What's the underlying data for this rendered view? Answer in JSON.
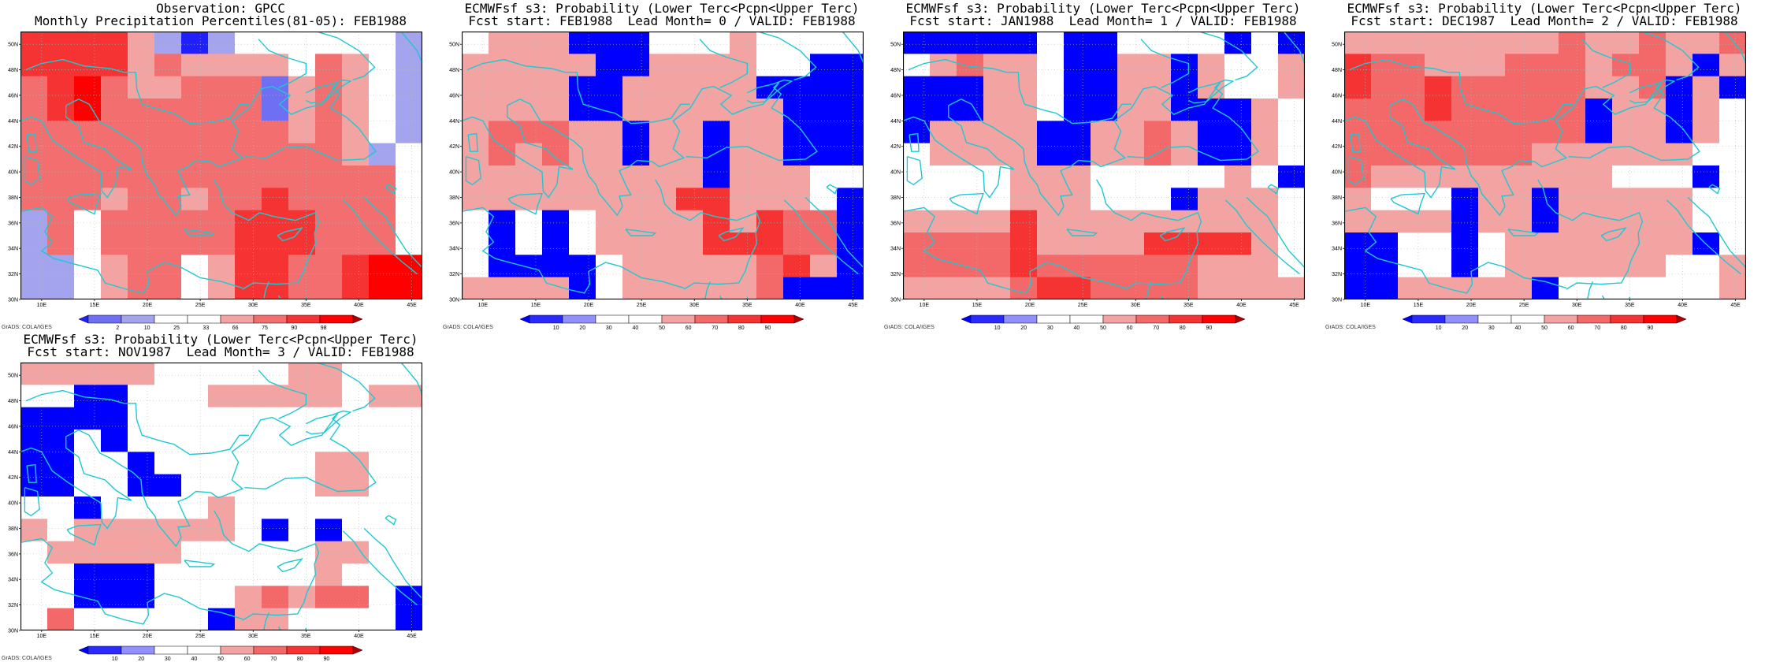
{
  "credit": "GrADS: COLA/IGES",
  "colors": {
    "coast": "#1ec8d2",
    "obs_levels": [
      "#2020ff",
      "#6f6ff4",
      "#a3a3ee",
      "#ffffff",
      "#ffffff",
      "#f4a3a3",
      "#f36f6f",
      "#f63333",
      "#ff0000",
      "#b30000"
    ],
    "prob_levels": [
      "#0000ff",
      "#2a2aff",
      "#9090ff",
      "#ffffff",
      "#ffffff",
      "#f4a3a3",
      "#f36868",
      "#f63333",
      "#ff0000",
      "#b30000"
    ]
  },
  "panels": [
    {
      "title_line1": "Observation: GPCC",
      "title_line2": "Monthly Precipitation Percentiles(81-05): FEB1988",
      "colorbar_labels": [
        "2",
        "10",
        "25",
        "33",
        "66",
        "75",
        "90",
        "98"
      ],
      "scale": "obs",
      "grid": [
        [
          7,
          7,
          7,
          7,
          5,
          2,
          0,
          2,
          3,
          3,
          3,
          3,
          3,
          3,
          2
        ],
        [
          7,
          7,
          7,
          7,
          5,
          6,
          5,
          5,
          5,
          5,
          3,
          6,
          5,
          3,
          2
        ],
        [
          6,
          7,
          8,
          6,
          5,
          5,
          6,
          6,
          6,
          1,
          5,
          6,
          5,
          3,
          2
        ],
        [
          6,
          7,
          8,
          6,
          6,
          6,
          6,
          6,
          6,
          1,
          5,
          6,
          5,
          3,
          2
        ],
        [
          6,
          6,
          6,
          6,
          6,
          6,
          6,
          6,
          6,
          6,
          5,
          6,
          5,
          3,
          2
        ],
        [
          6,
          6,
          6,
          6,
          6,
          6,
          6,
          6,
          6,
          6,
          6,
          6,
          5,
          2,
          3
        ],
        [
          6,
          6,
          6,
          6,
          6,
          6,
          6,
          6,
          6,
          6,
          6,
          6,
          6,
          6,
          3
        ],
        [
          6,
          6,
          6,
          5,
          6,
          6,
          5,
          6,
          6,
          7,
          6,
          6,
          6,
          6,
          3
        ],
        [
          2,
          6,
          3,
          6,
          6,
          6,
          6,
          6,
          7,
          7,
          7,
          6,
          6,
          6,
          3
        ],
        [
          2,
          6,
          3,
          6,
          6,
          6,
          6,
          6,
          7,
          7,
          7,
          6,
          6,
          6,
          3
        ],
        [
          2,
          2,
          3,
          5,
          6,
          6,
          3,
          5,
          7,
          7,
          6,
          6,
          7,
          8,
          8
        ],
        [
          2,
          2,
          3,
          5,
          6,
          6,
          3,
          5,
          7,
          7,
          6,
          6,
          7,
          8,
          8
        ]
      ]
    },
    {
      "title_line1": "ECMWFsf s3: Probability (Lower Terc<Pcpn<Upper Terc)",
      "title_line2": "Fcst start: FEB1988  Lead Month= 0 / VALID: FEB1988",
      "colorbar_labels": [
        "10",
        "20",
        "30",
        "40",
        "50",
        "60",
        "70",
        "80",
        "90"
      ],
      "scale": "prob",
      "grid": [
        [
          3,
          5,
          5,
          5,
          0,
          0,
          0,
          3,
          3,
          3,
          5,
          3,
          3,
          3,
          3
        ],
        [
          5,
          5,
          5,
          5,
          5,
          0,
          0,
          5,
          5,
          5,
          5,
          3,
          3,
          0,
          0
        ],
        [
          5,
          5,
          5,
          5,
          0,
          0,
          5,
          5,
          5,
          5,
          5,
          0,
          0,
          0,
          0
        ],
        [
          5,
          5,
          5,
          5,
          0,
          0,
          5,
          5,
          5,
          5,
          5,
          5,
          0,
          0,
          0
        ],
        [
          5,
          6,
          6,
          6,
          5,
          5,
          0,
          5,
          5,
          0,
          5,
          5,
          0,
          0,
          0
        ],
        [
          5,
          6,
          5,
          6,
          5,
          5,
          0,
          5,
          5,
          0,
          5,
          5,
          0,
          0,
          0
        ],
        [
          5,
          5,
          5,
          5,
          5,
          5,
          5,
          5,
          5,
          0,
          5,
          5,
          5,
          3,
          3
        ],
        [
          5,
          5,
          5,
          5,
          5,
          5,
          5,
          5,
          7,
          7,
          5,
          5,
          5,
          3,
          0
        ],
        [
          3,
          0,
          3,
          0,
          3,
          5,
          5,
          5,
          5,
          7,
          5,
          7,
          6,
          6,
          0
        ],
        [
          3,
          0,
          3,
          0,
          3,
          5,
          5,
          5,
          5,
          7,
          7,
          7,
          6,
          6,
          0
        ],
        [
          3,
          0,
          0,
          0,
          0,
          3,
          5,
          5,
          5,
          5,
          5,
          6,
          7,
          5,
          0
        ],
        [
          5,
          5,
          5,
          5,
          0,
          3,
          5,
          5,
          5,
          5,
          5,
          6,
          0,
          0,
          0
        ]
      ]
    },
    {
      "title_line1": "ECMWFsf s3: Probability (Lower Terc<Pcpn<Upper Terc)",
      "title_line2": "Fcst start: JAN1988  Lead Month= 1 / VALID: FEB1988",
      "colorbar_labels": [
        "10",
        "20",
        "30",
        "40",
        "50",
        "60",
        "70",
        "80",
        "90"
      ],
      "scale": "prob",
      "grid": [
        [
          0,
          0,
          0,
          0,
          0,
          3,
          0,
          0,
          3,
          3,
          3,
          3,
          0,
          3,
          0
        ],
        [
          3,
          5,
          6,
          5,
          5,
          3,
          0,
          0,
          5,
          5,
          0,
          5,
          3,
          3,
          5
        ],
        [
          0,
          0,
          0,
          5,
          5,
          3,
          0,
          0,
          5,
          5,
          0,
          5,
          3,
          3,
          5
        ],
        [
          0,
          0,
          0,
          5,
          5,
          3,
          0,
          0,
          5,
          5,
          0,
          0,
          0,
          5,
          3
        ],
        [
          0,
          5,
          5,
          5,
          5,
          0,
          0,
          5,
          5,
          6,
          5,
          0,
          0,
          5,
          3
        ],
        [
          3,
          5,
          5,
          5,
          5,
          0,
          0,
          5,
          5,
          6,
          5,
          0,
          0,
          5,
          3
        ],
        [
          3,
          3,
          3,
          3,
          5,
          5,
          5,
          3,
          3,
          3,
          3,
          3,
          5,
          3,
          0
        ],
        [
          3,
          3,
          3,
          3,
          5,
          5,
          5,
          3,
          3,
          3,
          0,
          5,
          5,
          5,
          3
        ],
        [
          5,
          5,
          5,
          5,
          7,
          5,
          5,
          5,
          5,
          5,
          5,
          5,
          5,
          5,
          3
        ],
        [
          6,
          6,
          6,
          6,
          7,
          5,
          5,
          5,
          5,
          7,
          7,
          7,
          7,
          5,
          3
        ],
        [
          6,
          6,
          6,
          6,
          7,
          6,
          6,
          6,
          6,
          6,
          6,
          5,
          5,
          5,
          3
        ],
        [
          5,
          5,
          5,
          5,
          6,
          7,
          7,
          6,
          6,
          6,
          6,
          5,
          5,
          5,
          5
        ]
      ]
    },
    {
      "title_line1": "ECMWFsf s3: Probability (Lower Terc<Pcpn<Upper Terc)",
      "title_line2": "Fcst start: DEC1987  Lead Month= 2 / VALID: FEB1988",
      "colorbar_labels": [
        "10",
        "20",
        "30",
        "40",
        "50",
        "60",
        "70",
        "80",
        "90"
      ],
      "scale": "prob",
      "grid": [
        [
          5,
          5,
          5,
          5,
          5,
          5,
          5,
          5,
          6,
          5,
          5,
          6,
          5,
          5,
          6
        ],
        [
          7,
          6,
          6,
          5,
          5,
          5,
          6,
          6,
          6,
          5,
          6,
          6,
          5,
          0,
          5
        ],
        [
          7,
          6,
          6,
          7,
          6,
          6,
          6,
          6,
          6,
          5,
          5,
          6,
          0,
          5,
          0
        ],
        [
          6,
          6,
          6,
          7,
          6,
          6,
          6,
          6,
          6,
          0,
          5,
          5,
          0,
          5,
          3
        ],
        [
          6,
          6,
          6,
          6,
          6,
          6,
          6,
          6,
          6,
          0,
          5,
          5,
          0,
          5,
          3
        ],
        [
          6,
          6,
          6,
          6,
          6,
          6,
          6,
          5,
          5,
          5,
          5,
          5,
          5,
          3,
          3
        ],
        [
          6,
          5,
          5,
          5,
          5,
          5,
          5,
          5,
          5,
          5,
          3,
          3,
          3,
          0,
          3
        ],
        [
          5,
          3,
          3,
          3,
          0,
          5,
          5,
          0,
          5,
          5,
          5,
          5,
          5,
          3,
          3
        ],
        [
          5,
          5,
          5,
          5,
          0,
          5,
          5,
          0,
          5,
          5,
          5,
          5,
          5,
          3,
          3
        ],
        [
          0,
          0,
          3,
          3,
          0,
          3,
          5,
          5,
          5,
          5,
          5,
          5,
          5,
          0,
          3
        ],
        [
          0,
          0,
          3,
          3,
          0,
          3,
          5,
          5,
          5,
          5,
          5,
          5,
          3,
          3,
          5
        ],
        [
          0,
          0,
          5,
          5,
          5,
          5,
          5,
          0,
          3,
          3,
          3,
          3,
          3,
          3,
          5
        ]
      ]
    },
    {
      "title_line1": "ECMWFsf s3: Probability (Lower Terc<Pcpn<Upper Terc)",
      "title_line2": "Fcst start: NOV1987  Lead Month= 3 / VALID: FEB1988",
      "colorbar_labels": [
        "10",
        "20",
        "30",
        "40",
        "50",
        "60",
        "70",
        "80",
        "90"
      ],
      "scale": "prob",
      "grid": [
        [
          5,
          5,
          5,
          5,
          5,
          3,
          3,
          3,
          3,
          3,
          5,
          5,
          3,
          3,
          3
        ],
        [
          3,
          3,
          0,
          0,
          3,
          3,
          3,
          5,
          5,
          5,
          5,
          5,
          3,
          5,
          5
        ],
        [
          0,
          0,
          0,
          0,
          3,
          3,
          3,
          3,
          3,
          3,
          3,
          3,
          3,
          3,
          3
        ],
        [
          0,
          0,
          3,
          0,
          3,
          3,
          3,
          3,
          3,
          3,
          3,
          3,
          3,
          3,
          3
        ],
        [
          0,
          0,
          3,
          3,
          0,
          3,
          3,
          3,
          3,
          3,
          3,
          5,
          5,
          3,
          3
        ],
        [
          0,
          0,
          3,
          3,
          0,
          0,
          3,
          3,
          3,
          3,
          3,
          5,
          5,
          3,
          3
        ],
        [
          3,
          3,
          0,
          3,
          3,
          3,
          3,
          5,
          3,
          3,
          3,
          3,
          3,
          3,
          3
        ],
        [
          5,
          3,
          5,
          5,
          5,
          5,
          5,
          5,
          3,
          0,
          3,
          0,
          3,
          3,
          3
        ],
        [
          3,
          5,
          5,
          5,
          5,
          5,
          3,
          3,
          3,
          3,
          3,
          5,
          5,
          3,
          3
        ],
        [
          3,
          3,
          0,
          0,
          0,
          3,
          3,
          3,
          3,
          3,
          3,
          5,
          3,
          3,
          3
        ],
        [
          3,
          3,
          0,
          0,
          0,
          3,
          3,
          3,
          5,
          6,
          5,
          6,
          6,
          3,
          0
        ],
        [
          3,
          6,
          3,
          3,
          3,
          3,
          3,
          0,
          5,
          5,
          3,
          3,
          3,
          3,
          0
        ]
      ]
    }
  ],
  "lat_labels": [
    "30N",
    "32N",
    "34N",
    "36N",
    "38N",
    "40N",
    "42N",
    "44N",
    "46N",
    "48N",
    "50N"
  ],
  "lon_labels": [
    "10E",
    "15E",
    "20E",
    "25E",
    "30E",
    "35E",
    "40E",
    "45E"
  ]
}
